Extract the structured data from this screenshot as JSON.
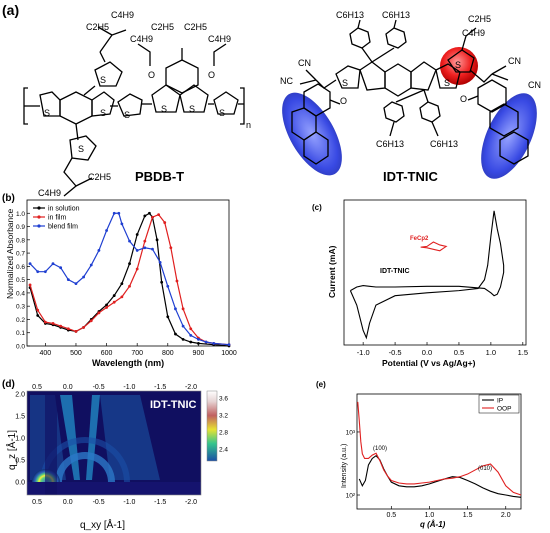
{
  "panels": {
    "a": {
      "label": "(a)",
      "polymer": "PBDB-T",
      "acceptor": "IDT-TNIC",
      "groups": {
        "c4h9": "C4H9",
        "c2h5": "C2H5",
        "c6h13": "C6H13",
        "s": "S",
        "o": "O",
        "cn": "CN",
        "nc": "NC",
        "n": "n"
      }
    },
    "b": {
      "label": "(b)"
    },
    "c": {
      "label": "(c)"
    },
    "d": {
      "label": "(d)"
    },
    "e": {
      "label": "(e)"
    }
  },
  "chart_data": [
    {
      "id": "b",
      "type": "line",
      "xlabel": "Wavelength (nm)",
      "ylabel": "Normalized Absorbance",
      "xlim": [
        340,
        1000
      ],
      "ylim": [
        0,
        1.1
      ],
      "xticks": [
        "400",
        "500",
        "600",
        "700",
        "800",
        "900",
        "1000"
      ],
      "yticks": [
        "0.0",
        "0.1",
        "0.2",
        "0.3",
        "0.4",
        "0.5",
        "0.6",
        "0.7",
        "0.8",
        "0.9",
        "1.0"
      ],
      "legend_position": "top-left",
      "series": [
        {
          "name": "in solution",
          "color": "#000000",
          "x": [
            350,
            375,
            400,
            425,
            450,
            475,
            500,
            525,
            550,
            575,
            600,
            625,
            650,
            675,
            700,
            725,
            740,
            750,
            765,
            780,
            800,
            825,
            850,
            875,
            900,
            950,
            1000
          ],
          "y": [
            0.44,
            0.23,
            0.17,
            0.16,
            0.14,
            0.12,
            0.11,
            0.14,
            0.2,
            0.26,
            0.31,
            0.38,
            0.47,
            0.62,
            0.84,
            0.98,
            1.0,
            0.97,
            0.8,
            0.48,
            0.22,
            0.09,
            0.05,
            0.03,
            0.02,
            0.01,
            0.0
          ]
        },
        {
          "name": "in film",
          "color": "#e02020",
          "x": [
            350,
            375,
            400,
            425,
            450,
            475,
            500,
            525,
            550,
            575,
            600,
            625,
            650,
            675,
            700,
            725,
            750,
            770,
            790,
            810,
            830,
            850,
            875,
            900,
            925,
            950,
            1000
          ],
          "y": [
            0.46,
            0.27,
            0.18,
            0.17,
            0.15,
            0.13,
            0.11,
            0.14,
            0.19,
            0.25,
            0.29,
            0.33,
            0.37,
            0.45,
            0.58,
            0.79,
            0.97,
            0.99,
            0.93,
            0.74,
            0.49,
            0.28,
            0.13,
            0.06,
            0.03,
            0.02,
            0.01
          ]
        },
        {
          "name": "blend film",
          "color": "#1f3fd1",
          "x": [
            350,
            375,
            400,
            425,
            450,
            475,
            500,
            525,
            550,
            575,
            600,
            625,
            640,
            650,
            675,
            700,
            725,
            750,
            775,
            800,
            825,
            850,
            875,
            900,
            925,
            950,
            1000
          ],
          "y": [
            0.62,
            0.56,
            0.56,
            0.62,
            0.59,
            0.5,
            0.47,
            0.52,
            0.61,
            0.72,
            0.87,
            1.0,
            1.0,
            0.92,
            0.79,
            0.72,
            0.74,
            0.73,
            0.63,
            0.45,
            0.28,
            0.15,
            0.08,
            0.05,
            0.03,
            0.02,
            0.01
          ]
        }
      ]
    },
    {
      "id": "c",
      "type": "line",
      "xlabel": "Potential (V vs Ag/Ag+)",
      "ylabel": "Current (mA)",
      "xlim": [
        -1.3,
        1.55
      ],
      "xticks": [
        "-1.0",
        "-0.5",
        "0.0",
        "0.5",
        "1.0",
        "1.5"
      ],
      "annotations": [
        "FeCp2",
        "IDT-TNIC"
      ],
      "series": [
        {
          "name": "IDT-TNIC",
          "color": "#000000",
          "x": [
            -1.2,
            -1.1,
            -1.0,
            -0.95,
            -0.9,
            -0.8,
            -0.5,
            0.0,
            0.5,
            0.8,
            0.9,
            0.95,
            1.0,
            1.05,
            1.1,
            1.15,
            1.2,
            1.2,
            1.15,
            1.1,
            1.05,
            1.0,
            0.9,
            0.5,
            0.0,
            -0.5,
            -0.8,
            -0.9,
            -1.0,
            -1.1,
            -1.2
          ],
          "y": [
            -0.05,
            -0.25,
            -0.6,
            -0.7,
            -0.5,
            -0.25,
            -0.12,
            -0.08,
            -0.05,
            -0.02,
            0.1,
            0.3,
            0.7,
            1.05,
            0.8,
            0.6,
            0.3,
            0.2,
            0.0,
            -0.1,
            -0.12,
            -0.08,
            -0.02,
            0.01,
            0.01,
            0.0,
            0.0,
            0.01,
            0.02,
            0.0,
            -0.05
          ]
        },
        {
          "name": "FeCp2",
          "color": "#e02020",
          "x": [
            -0.1,
            0.0,
            0.05,
            0.1,
            0.15,
            0.2,
            0.25,
            0.3,
            0.25,
            0.2,
            0.1,
            0.0,
            -0.1
          ],
          "y": [
            0.55,
            0.56,
            0.59,
            0.62,
            0.6,
            0.58,
            0.57,
            0.56,
            0.53,
            0.5,
            0.52,
            0.54,
            0.55
          ]
        }
      ]
    },
    {
      "id": "d",
      "type": "heatmap",
      "title": "IDT-TNIC",
      "xlabel": "q_xy [Å-1]",
      "ylabel": "q_z [Å-1]",
      "xticks": [
        "0.5",
        "0.0",
        "-0.5",
        "-1.0",
        "-1.5",
        "-2.0"
      ],
      "top_ticks": [
        "0.5",
        "0.0",
        "-0.5",
        "-1.0",
        "-1.5",
        "-2.0"
      ],
      "yticks": [
        "0.0",
        "0.5",
        "1.0",
        "1.5",
        "2.0"
      ],
      "colorbar_ticks": [
        "3.6",
        "3.2",
        "2.8",
        "2.4"
      ]
    },
    {
      "id": "e",
      "type": "line",
      "xlabel": "q (Å-1)",
      "ylabel": "Intensity (a.u.)",
      "xlim": [
        0.05,
        2.2
      ],
      "xticks": [
        "0.5",
        "1.0",
        "1.5",
        "2.0"
      ],
      "yticks": [
        "10²",
        "10³"
      ],
      "log_y": true,
      "legend_position": "top-right",
      "annotations": [
        "(100)",
        "(010)"
      ],
      "series": [
        {
          "name": "IP",
          "color": "#000000",
          "x": [
            0.08,
            0.12,
            0.16,
            0.2,
            0.25,
            0.3,
            0.35,
            0.4,
            0.45,
            0.5,
            0.6,
            0.7,
            0.8,
            0.9,
            1.0,
            1.1,
            1.2,
            1.3,
            1.4,
            1.5,
            1.6,
            1.7,
            1.8,
            1.9,
            2.0,
            2.1,
            2.2
          ],
          "y": [
            180,
            140,
            170,
            300,
            380,
            420,
            360,
            260,
            200,
            160,
            140,
            135,
            135,
            140,
            150,
            165,
            180,
            195,
            190,
            170,
            150,
            130,
            115,
            105,
            100,
            95,
            92
          ]
        },
        {
          "name": "OOP",
          "color": "#e02020",
          "x": [
            0.06,
            0.08,
            0.1,
            0.12,
            0.15,
            0.2,
            0.25,
            0.3,
            0.35,
            0.4,
            0.45,
            0.5,
            0.6,
            0.7,
            0.8,
            0.9,
            1.0,
            1.1,
            1.2,
            1.3,
            1.4,
            1.5,
            1.6,
            1.7,
            1.8,
            1.9,
            2.0,
            2.1,
            2.2
          ],
          "y": [
            3000,
            1500,
            700,
            450,
            380,
            380,
            430,
            460,
            350,
            250,
            200,
            170,
            155,
            150,
            150,
            155,
            160,
            170,
            180,
            185,
            195,
            215,
            250,
            290,
            310,
            230,
            140,
            110,
            100
          ]
        }
      ]
    }
  ]
}
